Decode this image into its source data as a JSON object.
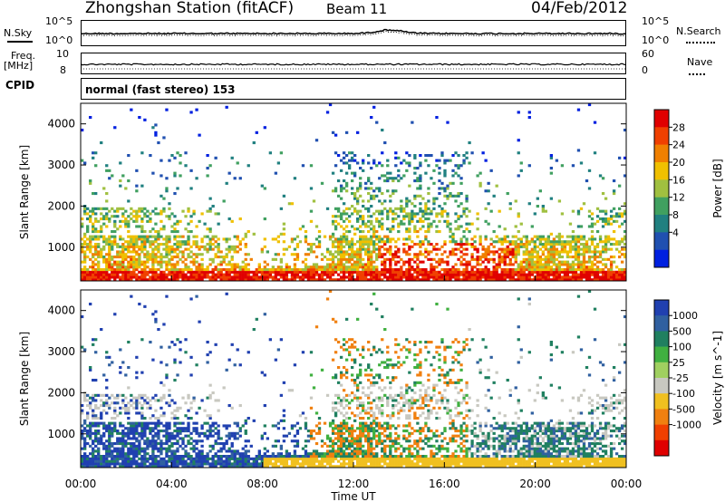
{
  "header": {
    "station": "Zhongshan Station (fitACF)",
    "beam": "Beam 11",
    "date": "04/Feb/2012"
  },
  "top_panels": {
    "nsky_label": "N.Sky",
    "nsky_ticks": [
      "10^5",
      "10^0"
    ],
    "nsearch_label": "N.Search",
    "nsearch_ticks": [
      "10^5",
      "10^0"
    ],
    "freq_label_1": "Freq.",
    "freq_label_2": "[MHz]",
    "freq_ticks": [
      "10",
      "8"
    ],
    "nave_label": "Nave",
    "nave_ticks": [
      "60",
      "0"
    ],
    "cpid_label": "CPID",
    "cpid_value": "normal (fast stereo) 153"
  },
  "chart_data": [
    {
      "type": "heatmap",
      "title": "",
      "ylabel": "Slant Range [km]",
      "xlabel": "",
      "y_ticks": [
        "4000",
        "3000",
        "2000",
        "1000"
      ],
      "colorbar_label": "Power [dB]",
      "colorbar_ticks": [
        "28",
        "24",
        "20",
        "16",
        "12",
        "8",
        "4"
      ],
      "colorbar_colors": [
        "#e00000",
        "#f04000",
        "#f08000",
        "#f0c000",
        "#a0c040",
        "#40a060",
        "#208080",
        "#2050b0",
        "#0020e0"
      ],
      "ylim": [
        180,
        4500
      ],
      "xlim": [
        "00:00",
        "24:00"
      ]
    },
    {
      "type": "heatmap",
      "title": "",
      "ylabel": "Slant Range [km]",
      "xlabel": "Time UT",
      "x_ticks": [
        "00:00",
        "04:00",
        "08:00",
        "12:00",
        "16:00",
        "20:00",
        "00:00"
      ],
      "y_ticks": [
        "4000",
        "3000",
        "2000",
        "1000"
      ],
      "colorbar_label": "Velocity [m s^-1]",
      "colorbar_ticks": [
        "1000",
        "500",
        "100",
        "25",
        "-25",
        "-100",
        "-500",
        "-1000"
      ],
      "colorbar_colors": [
        "#2040b0",
        "#3060a0",
        "#208060",
        "#40b040",
        "#a0d060",
        "#c8c8c0",
        "#f0c020",
        "#f08010",
        "#f04000",
        "#e00000"
      ],
      "ylim": [
        180,
        4500
      ],
      "xlim": [
        "00:00",
        "24:00"
      ]
    }
  ]
}
